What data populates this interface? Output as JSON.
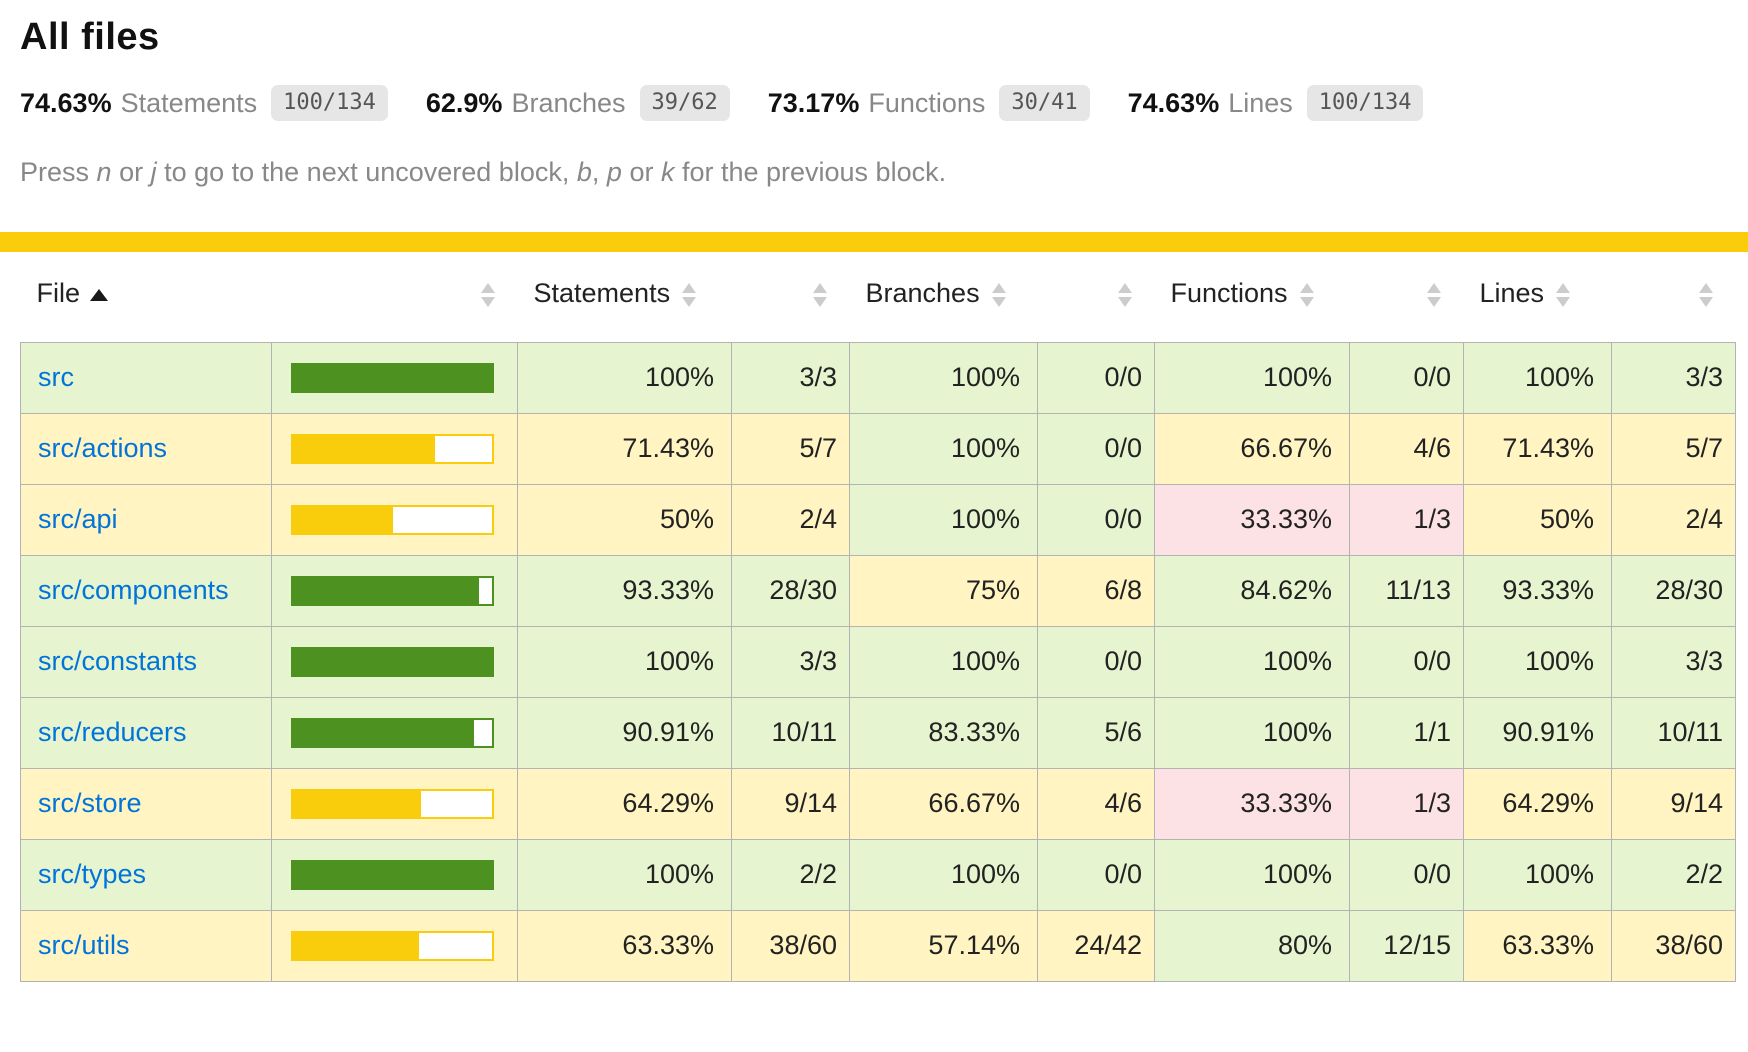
{
  "page": {
    "title": "All files"
  },
  "summary": [
    {
      "pct": "74.63%",
      "label": "Statements",
      "fraction": "100/134"
    },
    {
      "pct": "62.9%",
      "label": "Branches",
      "fraction": "39/62"
    },
    {
      "pct": "73.17%",
      "label": "Functions",
      "fraction": "30/41"
    },
    {
      "pct": "74.63%",
      "label": "Lines",
      "fraction": "100/134"
    }
  ],
  "hint": {
    "parts": [
      {
        "t": "Press ",
        "i": 0
      },
      {
        "t": "n",
        "i": 1
      },
      {
        "t": " or ",
        "i": 0
      },
      {
        "t": "j",
        "i": 1
      },
      {
        "t": " to go to the next uncovered block, ",
        "i": 0
      },
      {
        "t": "b",
        "i": 1
      },
      {
        "t": ", ",
        "i": 0
      },
      {
        "t": "p",
        "i": 1
      },
      {
        "t": " or ",
        "i": 0
      },
      {
        "t": "k",
        "i": 1
      },
      {
        "t": " for the previous block.",
        "i": 0
      }
    ]
  },
  "colors": {
    "status_line": "#f9cd0b",
    "bar_fill_high": "#4d9221",
    "bar_fill_medium": "#f9cd0b",
    "bg_high": "#e6f5d0",
    "bg_medium": "#fff4c2",
    "bg_low": "#fce1e5",
    "link": "#0074d9",
    "badge_bg": "#e6e6e6",
    "border": "#b3b3b3"
  },
  "table": {
    "headers": {
      "file": "File",
      "statements": "Statements",
      "branches": "Branches",
      "functions": "Functions",
      "lines": "Lines"
    },
    "sort": {
      "column": "file",
      "direction": "asc"
    },
    "rows": [
      {
        "file": "src",
        "level": "high",
        "bar_pct": 100,
        "statements": {
          "pct": "100%",
          "frac": "3/3",
          "level": "high"
        },
        "branches": {
          "pct": "100%",
          "frac": "0/0",
          "level": "high"
        },
        "functions": {
          "pct": "100%",
          "frac": "0/0",
          "level": "high"
        },
        "lines": {
          "pct": "100%",
          "frac": "3/3",
          "level": "high"
        }
      },
      {
        "file": "src/actions",
        "level": "medium",
        "bar_pct": 71.43,
        "statements": {
          "pct": "71.43%",
          "frac": "5/7",
          "level": "medium"
        },
        "branches": {
          "pct": "100%",
          "frac": "0/0",
          "level": "high"
        },
        "functions": {
          "pct": "66.67%",
          "frac": "4/6",
          "level": "medium"
        },
        "lines": {
          "pct": "71.43%",
          "frac": "5/7",
          "level": "medium"
        }
      },
      {
        "file": "src/api",
        "level": "medium",
        "bar_pct": 50,
        "statements": {
          "pct": "50%",
          "frac": "2/4",
          "level": "medium"
        },
        "branches": {
          "pct": "100%",
          "frac": "0/0",
          "level": "high"
        },
        "functions": {
          "pct": "33.33%",
          "frac": "1/3",
          "level": "low"
        },
        "lines": {
          "pct": "50%",
          "frac": "2/4",
          "level": "medium"
        }
      },
      {
        "file": "src/components",
        "level": "high",
        "bar_pct": 93.33,
        "statements": {
          "pct": "93.33%",
          "frac": "28/30",
          "level": "high"
        },
        "branches": {
          "pct": "75%",
          "frac": "6/8",
          "level": "medium"
        },
        "functions": {
          "pct": "84.62%",
          "frac": "11/13",
          "level": "high"
        },
        "lines": {
          "pct": "93.33%",
          "frac": "28/30",
          "level": "high"
        }
      },
      {
        "file": "src/constants",
        "level": "high",
        "bar_pct": 100,
        "statements": {
          "pct": "100%",
          "frac": "3/3",
          "level": "high"
        },
        "branches": {
          "pct": "100%",
          "frac": "0/0",
          "level": "high"
        },
        "functions": {
          "pct": "100%",
          "frac": "0/0",
          "level": "high"
        },
        "lines": {
          "pct": "100%",
          "frac": "3/3",
          "level": "high"
        }
      },
      {
        "file": "src/reducers",
        "level": "high",
        "bar_pct": 90.91,
        "statements": {
          "pct": "90.91%",
          "frac": "10/11",
          "level": "high"
        },
        "branches": {
          "pct": "83.33%",
          "frac": "5/6",
          "level": "high"
        },
        "functions": {
          "pct": "100%",
          "frac": "1/1",
          "level": "high"
        },
        "lines": {
          "pct": "90.91%",
          "frac": "10/11",
          "level": "high"
        }
      },
      {
        "file": "src/store",
        "level": "medium",
        "bar_pct": 64.29,
        "statements": {
          "pct": "64.29%",
          "frac": "9/14",
          "level": "medium"
        },
        "branches": {
          "pct": "66.67%",
          "frac": "4/6",
          "level": "medium"
        },
        "functions": {
          "pct": "33.33%",
          "frac": "1/3",
          "level": "low"
        },
        "lines": {
          "pct": "64.29%",
          "frac": "9/14",
          "level": "medium"
        }
      },
      {
        "file": "src/types",
        "level": "high",
        "bar_pct": 100,
        "statements": {
          "pct": "100%",
          "frac": "2/2",
          "level": "high"
        },
        "branches": {
          "pct": "100%",
          "frac": "0/0",
          "level": "high"
        },
        "functions": {
          "pct": "100%",
          "frac": "0/0",
          "level": "high"
        },
        "lines": {
          "pct": "100%",
          "frac": "2/2",
          "level": "high"
        }
      },
      {
        "file": "src/utils",
        "level": "medium",
        "bar_pct": 63.33,
        "statements": {
          "pct": "63.33%",
          "frac": "38/60",
          "level": "medium"
        },
        "branches": {
          "pct": "57.14%",
          "frac": "24/42",
          "level": "medium"
        },
        "functions": {
          "pct": "80%",
          "frac": "12/15",
          "level": "high"
        },
        "lines": {
          "pct": "63.33%",
          "frac": "38/60",
          "level": "medium"
        }
      }
    ]
  }
}
